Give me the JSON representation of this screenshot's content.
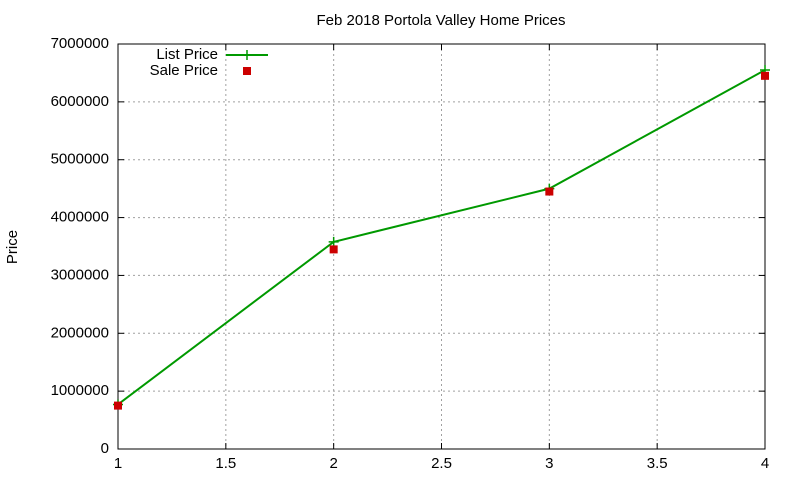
{
  "chart_data": {
    "type": "line",
    "title": "Feb 2018 Portola Valley Home Prices",
    "y_label": "Price",
    "x": [
      1,
      2,
      3,
      4
    ],
    "series": [
      {
        "name": "List Price",
        "color": "#009900",
        "mode": "lines+markers",
        "marker": "plus",
        "values": [
          770000,
          3580000,
          4500000,
          6550000
        ]
      },
      {
        "name": "Sale Price",
        "color": "#cc0000",
        "mode": "markers",
        "marker": "square",
        "values": [
          750000,
          3450000,
          4450000,
          6450000
        ]
      }
    ],
    "xlim": [
      1,
      4
    ],
    "xticks": [
      1,
      1.5,
      2,
      2.5,
      3,
      3.5,
      4
    ],
    "ylim": [
      0,
      7000000
    ],
    "yticks": [
      0,
      1000000,
      2000000,
      3000000,
      4000000,
      5000000,
      6000000,
      7000000
    ],
    "grid": true,
    "legend_position": "top-left"
  }
}
